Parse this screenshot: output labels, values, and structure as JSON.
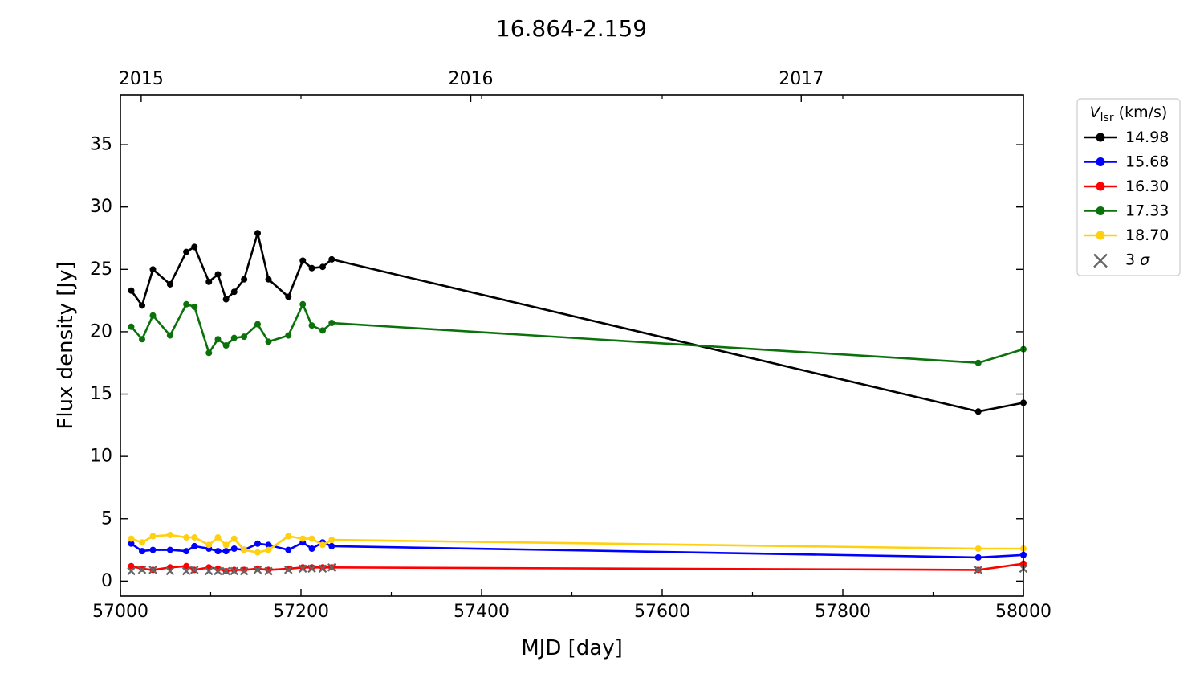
{
  "chart_data": {
    "type": "line",
    "title": "16.864-2.159",
    "xlabel": "MJD [day]",
    "ylabel": "Flux density [Jy]",
    "xlim": [
      57000,
      58000
    ],
    "ylim": [
      -1.2,
      39
    ],
    "x_ticks": [
      57000,
      57200,
      57400,
      57600,
      57800,
      58000
    ],
    "y_ticks": [
      0,
      5,
      10,
      15,
      20,
      25,
      30,
      35
    ],
    "top_axis": {
      "ticks": [
        {
          "label": "2015",
          "mjd": 57023
        },
        {
          "label": "2016",
          "mjd": 57388
        },
        {
          "label": "2017",
          "mjd": 57754
        }
      ]
    },
    "legend": {
      "title_symbol": "V",
      "title_sub": "lsr",
      "title_unit": " (km/s)",
      "sigma_label": "3 σ",
      "position": "outside-top-right"
    },
    "colors": {
      "14.98": "#000000",
      "15.68": "#0000ff",
      "16.30": "#ff0000",
      "17.33": "#0b720b",
      "18.70": "#ffd010",
      "sigma": "#666666"
    },
    "x": [
      57012,
      57024,
      57036,
      57055,
      57073,
      57082,
      57098,
      57108,
      57117,
      57126,
      57137,
      57152,
      57164,
      57186,
      57202,
      57212,
      57224,
      57234,
      57950,
      58000
    ],
    "series": [
      {
        "name": "14.98",
        "values": [
          23.3,
          22.1,
          25.0,
          23.8,
          26.4,
          26.8,
          24.0,
          24.6,
          22.6,
          23.2,
          24.2,
          27.9,
          24.2,
          22.8,
          25.7,
          25.1,
          25.2,
          25.8,
          13.6,
          14.3
        ]
      },
      {
        "name": "15.68",
        "values": [
          3.0,
          2.4,
          2.5,
          2.5,
          2.4,
          2.8,
          2.6,
          2.4,
          2.4,
          2.6,
          2.5,
          3.0,
          2.9,
          2.5,
          3.1,
          2.6,
          3.1,
          2.8,
          1.9,
          2.1
        ]
      },
      {
        "name": "16.30",
        "values": [
          1.2,
          1.0,
          0.9,
          1.1,
          1.2,
          0.9,
          1.1,
          1.0,
          0.8,
          0.9,
          0.9,
          1.0,
          0.9,
          1.0,
          1.1,
          1.1,
          1.1,
          1.1,
          0.9,
          1.4
        ]
      },
      {
        "name": "17.33",
        "values": [
          20.4,
          19.4,
          21.3,
          19.7,
          22.2,
          22.0,
          18.3,
          19.4,
          18.9,
          19.5,
          19.6,
          20.6,
          19.2,
          19.7,
          22.2,
          20.5,
          20.1,
          20.7,
          17.5,
          18.6
        ]
      },
      {
        "name": "18.70",
        "values": [
          3.4,
          3.1,
          3.6,
          3.7,
          3.5,
          3.5,
          2.9,
          3.5,
          2.9,
          3.4,
          2.5,
          2.3,
          2.5,
          3.6,
          3.4,
          3.4,
          2.9,
          3.3,
          2.6,
          2.6
        ]
      }
    ],
    "three_sigma": {
      "x": [
        57012,
        57024,
        57036,
        57055,
        57073,
        57082,
        57098,
        57108,
        57117,
        57126,
        57137,
        57152,
        57164,
        57186,
        57202,
        57212,
        57224,
        57234,
        57950,
        58000
      ],
      "values": [
        0.8,
        0.9,
        0.9,
        0.8,
        0.8,
        0.9,
        0.8,
        0.8,
        0.8,
        0.8,
        0.8,
        0.9,
        0.8,
        0.9,
        1.0,
        1.0,
        1.0,
        1.1,
        0.9,
        1.0
      ]
    }
  }
}
